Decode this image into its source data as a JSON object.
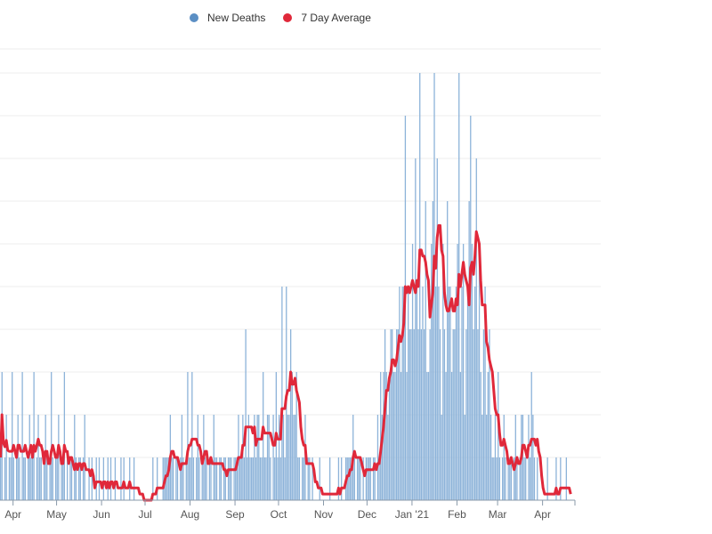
{
  "chart_data": {
    "type": "bar",
    "title": "",
    "xlabel": "",
    "ylabel": "",
    "ylim": [
      0,
      10
    ],
    "grid": true,
    "legend_position": "top-center",
    "start_date": "2020-03-23",
    "x_tick_labels": [
      {
        "label": "Apr",
        "day": 9
      },
      {
        "label": "May",
        "day": 39
      },
      {
        "label": "Jun",
        "day": 70
      },
      {
        "label": "Jul",
        "day": 100
      },
      {
        "label": "Aug",
        "day": 131
      },
      {
        "label": "Sep",
        "day": 162
      },
      {
        "label": "Oct",
        "day": 192
      },
      {
        "label": "Nov",
        "day": 223
      },
      {
        "label": "Dec",
        "day": 253
      },
      {
        "label": "Jan '21",
        "day": 284
      },
      {
        "label": "Feb",
        "day": 315
      },
      {
        "label": "Mar",
        "day": 343
      },
      {
        "label": "Apr",
        "day": 374
      }
    ],
    "series": [
      {
        "name": "New Deaths",
        "type": "bar",
        "color": "#8db3d9",
        "values": [
          1,
          3,
          0,
          1,
          2,
          0,
          1,
          1,
          3,
          1,
          0,
          1,
          2,
          1,
          0,
          3,
          1,
          1,
          0,
          1,
          2,
          1,
          1,
          3,
          0,
          1,
          2,
          1,
          1,
          0,
          1,
          2,
          1,
          0,
          1,
          3,
          1,
          0,
          1,
          1,
          2,
          0,
          1,
          1,
          3,
          0,
          1,
          0,
          1,
          1,
          0,
          2,
          1,
          0,
          1,
          1,
          0,
          1,
          2,
          0,
          0,
          1,
          0,
          1,
          0,
          0,
          1,
          0,
          1,
          0,
          0,
          1,
          0,
          0,
          1,
          0,
          1,
          0,
          0,
          1,
          0,
          0,
          0,
          1,
          0,
          1,
          0,
          0,
          0,
          1,
          0,
          0,
          1,
          0,
          0,
          0,
          0,
          0,
          0,
          0,
          0,
          0,
          0,
          0,
          0,
          1,
          0,
          0,
          1,
          0,
          0,
          0,
          1,
          1,
          1,
          1,
          1,
          2,
          1,
          1,
          0,
          1,
          1,
          0,
          1,
          2,
          1,
          0,
          1,
          3,
          1,
          1,
          3,
          1,
          0,
          1,
          2,
          1,
          0,
          1,
          2,
          1,
          1,
          0,
          1,
          1,
          0,
          2,
          1,
          1,
          0,
          1,
          1,
          0,
          1,
          1,
          0,
          1,
          1,
          1,
          0,
          1,
          1,
          1,
          2,
          1,
          1,
          2,
          1,
          4,
          1,
          2,
          1,
          1,
          1,
          2,
          1,
          2,
          2,
          1,
          1,
          3,
          1,
          1,
          2,
          2,
          1,
          0,
          2,
          1,
          3,
          1,
          2,
          1,
          5,
          2,
          1,
          5,
          2,
          2,
          4,
          3,
          2,
          2,
          3,
          1,
          1,
          0,
          1,
          1,
          2,
          0,
          1,
          1,
          0,
          1,
          0,
          0,
          0,
          0,
          1,
          0,
          0,
          0,
          0,
          0,
          0,
          1,
          0,
          0,
          0,
          0,
          0,
          1,
          0,
          1,
          0,
          0,
          1,
          1,
          1,
          1,
          1,
          2,
          1,
          0,
          1,
          1,
          1,
          0,
          1,
          0,
          1,
          1,
          1,
          1,
          0,
          1,
          1,
          0,
          2,
          1,
          3,
          2,
          3,
          4,
          3,
          2,
          3,
          4,
          4,
          3,
          3,
          4,
          4,
          5,
          3,
          5,
          5,
          9,
          3,
          5,
          4,
          4,
          6,
          4,
          8,
          5,
          4,
          10,
          4,
          5,
          4,
          7,
          3,
          3,
          4,
          6,
          7,
          10,
          5,
          8,
          5,
          4,
          2,
          6,
          4,
          3,
          7,
          5,
          5,
          3,
          4,
          4,
          5,
          6,
          10,
          3,
          5,
          6,
          2,
          4,
          5,
          7,
          9,
          6,
          4,
          5,
          8,
          4,
          6,
          3,
          2,
          4,
          5,
          2,
          3,
          4,
          2,
          1,
          1,
          2,
          1,
          3,
          1,
          0,
          1,
          2,
          1,
          0,
          1,
          1,
          1,
          0,
          1,
          2,
          1,
          0,
          1,
          2,
          2,
          1,
          1,
          0,
          2,
          1,
          3,
          2,
          1,
          0,
          1,
          0,
          0,
          0,
          0,
          0,
          0,
          1,
          0,
          0,
          0,
          0,
          0,
          1,
          0,
          0,
          1,
          0,
          0,
          0,
          1,
          0,
          0,
          0
        ]
      },
      {
        "name": "7 Day Average",
        "type": "line",
        "color": "#e0283a",
        "window": 7
      }
    ]
  }
}
